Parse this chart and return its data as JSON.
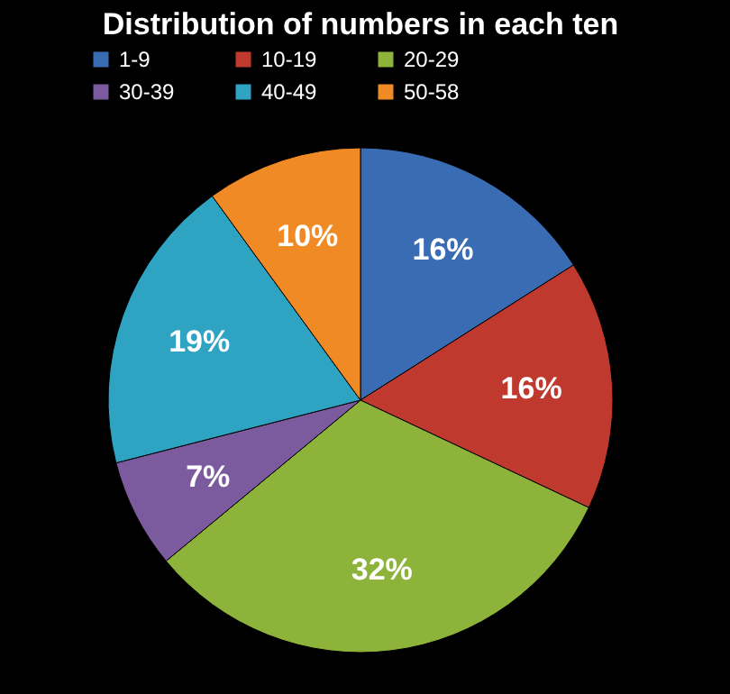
{
  "chart_data": {
    "type": "pie",
    "title": "Distribution of numbers in each ten",
    "categories": [
      "1-9",
      "10-19",
      "20-29",
      "30-39",
      "40-49",
      "50-58"
    ],
    "values": [
      16,
      16,
      32,
      7,
      19,
      10
    ],
    "colors": [
      "#3a6cb4",
      "#c0392f",
      "#8db33a",
      "#7b5a9e",
      "#2fa3c2",
      "#f08a24"
    ],
    "value_labels": [
      "16%",
      "16%",
      "32%",
      "7%",
      "19%",
      "10%"
    ],
    "legend": "top"
  }
}
